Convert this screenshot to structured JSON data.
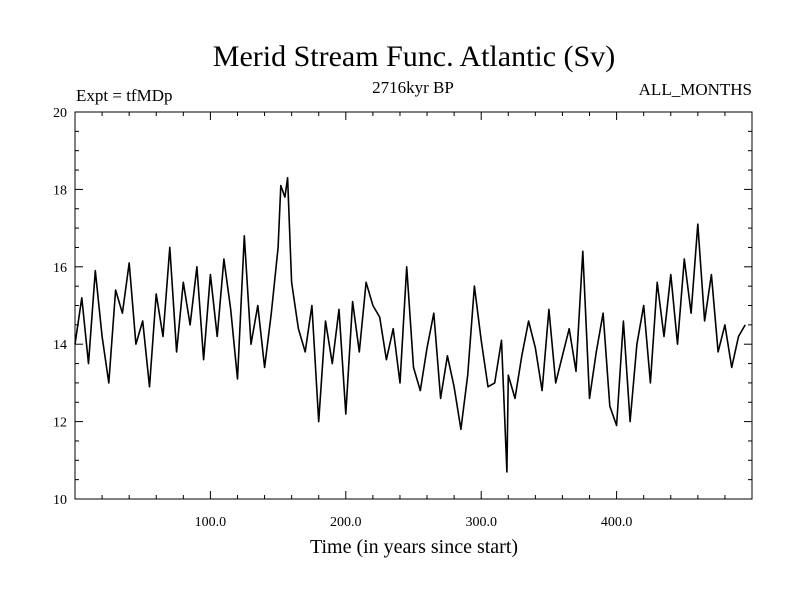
{
  "chart_data": {
    "type": "line",
    "title": "Merid Stream Func. Atlantic (Sv)",
    "subtitle_left": "Expt = tfMDp",
    "subtitle_center": "2716kyr BP",
    "subtitle_right": "ALL_MONTHS",
    "xlabel": "Time (in years since start)",
    "ylabel": "",
    "xlim": [
      0,
      500
    ],
    "ylim": [
      10,
      20
    ],
    "x_ticks": [
      100,
      200,
      300,
      400
    ],
    "x_tick_labels": [
      "100.0",
      "200.0",
      "300.0",
      "400.0"
    ],
    "y_ticks": [
      10,
      12,
      14,
      16,
      18,
      20
    ],
    "y_tick_labels": [
      "10",
      "12",
      "14",
      "16",
      "18",
      "20"
    ],
    "series": [
      {
        "name": "Merid Stream Func. Atlantic",
        "color": "#000000",
        "x": [
          0,
          5,
          10,
          15,
          20,
          25,
          30,
          35,
          40,
          45,
          50,
          55,
          60,
          65,
          70,
          75,
          80,
          85,
          90,
          95,
          100,
          105,
          110,
          115,
          120,
          125,
          130,
          135,
          140,
          145,
          150,
          152,
          155,
          157,
          160,
          165,
          170,
          175,
          180,
          185,
          190,
          195,
          200,
          205,
          210,
          215,
          220,
          225,
          230,
          235,
          240,
          245,
          250,
          255,
          260,
          265,
          270,
          275,
          280,
          285,
          290,
          295,
          300,
          305,
          310,
          315,
          319,
          320,
          325,
          330,
          335,
          340,
          345,
          350,
          355,
          360,
          365,
          370,
          375,
          380,
          385,
          390,
          395,
          400,
          405,
          410,
          415,
          420,
          425,
          430,
          435,
          440,
          445,
          450,
          455,
          460,
          465,
          470,
          475,
          480,
          485,
          490,
          495
        ],
        "y": [
          14.0,
          15.2,
          13.5,
          15.9,
          14.2,
          13.0,
          15.4,
          14.8,
          16.1,
          14.0,
          14.6,
          12.9,
          15.3,
          14.2,
          16.5,
          13.8,
          15.6,
          14.5,
          16.0,
          13.6,
          15.8,
          14.2,
          16.2,
          14.9,
          13.1,
          16.8,
          14.0,
          15.0,
          13.4,
          14.8,
          16.5,
          18.1,
          17.8,
          18.3,
          15.6,
          14.4,
          13.8,
          15.0,
          12.0,
          14.6,
          13.5,
          14.9,
          12.2,
          15.1,
          13.8,
          15.6,
          15.0,
          14.7,
          13.6,
          14.4,
          13.0,
          16.0,
          13.4,
          12.8,
          13.9,
          14.8,
          12.6,
          13.7,
          12.9,
          11.8,
          13.2,
          15.5,
          14.1,
          12.9,
          13.0,
          14.1,
          10.7,
          13.2,
          12.6,
          13.7,
          14.6,
          13.9,
          12.8,
          14.9,
          13.0,
          13.7,
          14.4,
          13.3,
          16.4,
          12.6,
          13.8,
          14.8,
          12.4,
          11.9,
          14.6,
          12.0,
          14.0,
          15.0,
          13.0,
          15.6,
          14.2,
          15.8,
          14.0,
          16.2,
          14.8,
          17.1,
          14.6,
          15.8,
          13.8,
          14.5,
          13.4,
          14.2,
          14.5
        ]
      }
    ]
  }
}
